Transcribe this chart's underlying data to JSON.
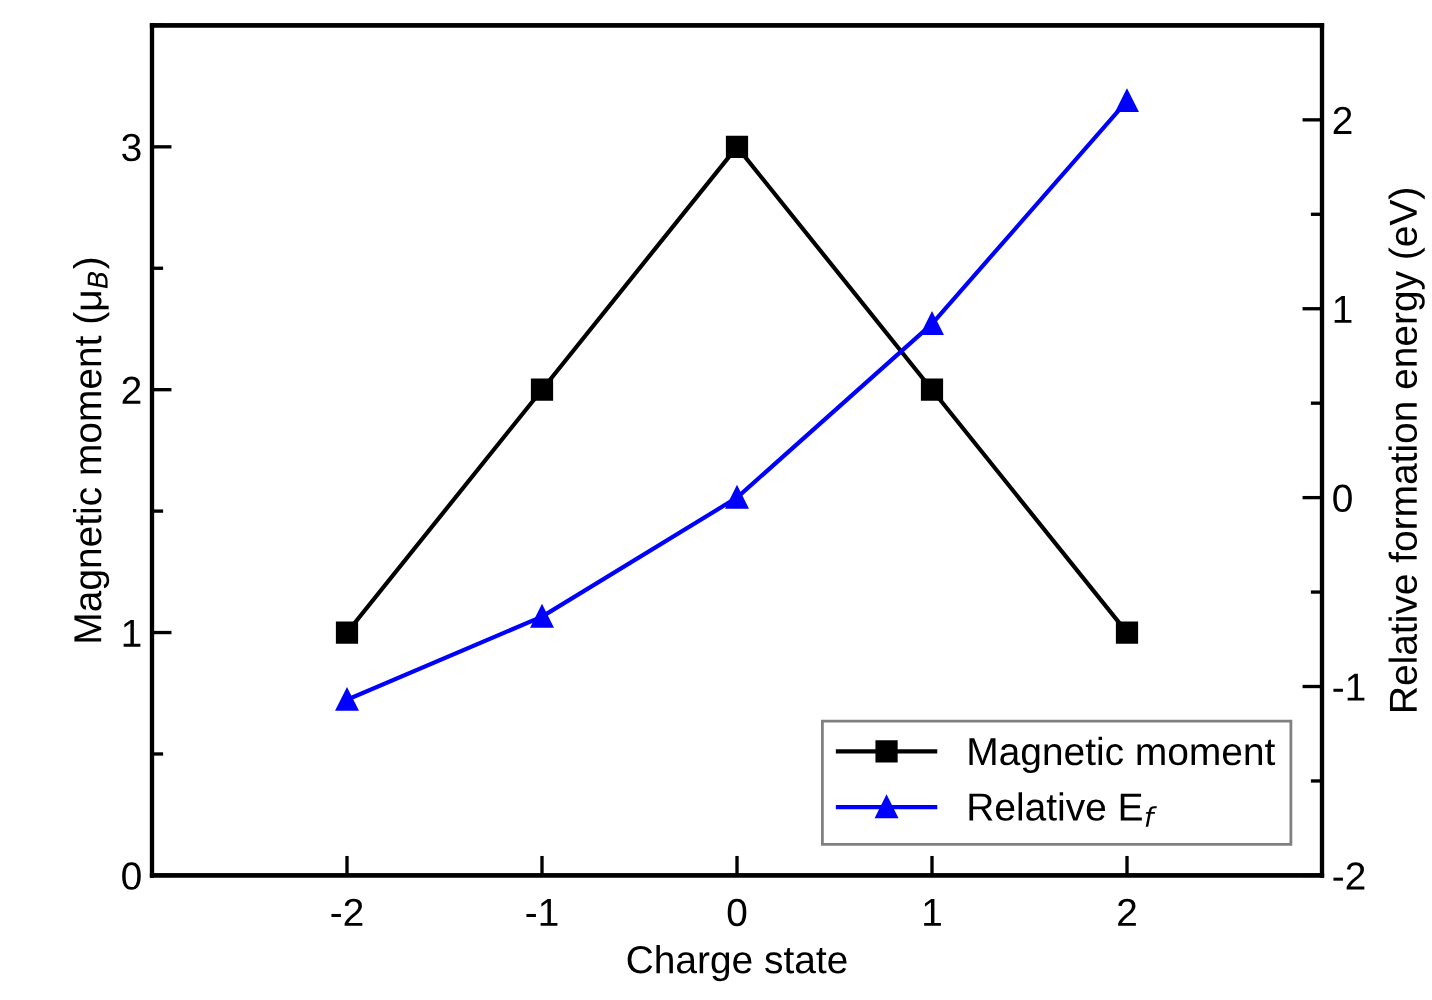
{
  "chart_data": {
    "type": "line",
    "xlabel": "Charge state",
    "ylabel": "Magnetic moment (μ$_{B}$)",
    "y2label": "Relative formation energy (eV)",
    "x": [
      -2,
      -1,
      0,
      1,
      2
    ],
    "series": [
      {
        "name": "Magnetic moment",
        "color": "#000000",
        "marker": "square",
        "values": [
          1,
          2,
          3,
          2,
          1
        ]
      },
      {
        "name": "Relative E$_{f}$",
        "color": "#0000ff",
        "marker": "triangle",
        "axis": "y2",
        "values": [
          -1.07,
          -0.63,
          0,
          0.92,
          2.1
        ]
      }
    ],
    "xlim": [
      -3,
      3
    ],
    "xticks": [
      -2,
      -1,
      0,
      1,
      2
    ],
    "ylim": [
      0,
      3.5
    ],
    "yticks": [
      0,
      1,
      2,
      3
    ],
    "y2lim": [
      -2,
      2.5
    ],
    "y2ticks": [
      -2,
      -1,
      0,
      1,
      2
    ],
    "legend": "bottom right",
    "grid": false,
    "line_style": "solid"
  }
}
